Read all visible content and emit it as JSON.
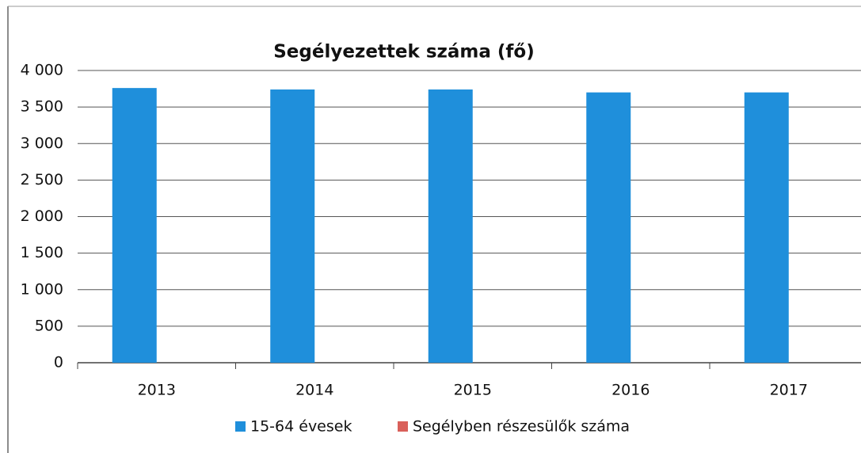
{
  "chart_data": {
    "type": "bar",
    "title": "Segélyezettek száma (fő)",
    "categories": [
      "2013",
      "2014",
      "2015",
      "2016",
      "2017"
    ],
    "series": [
      {
        "name": "15-64 évesek",
        "color": "#1f8fdb",
        "values": [
          3760,
          3740,
          3740,
          3700,
          3700
        ]
      },
      {
        "name": "Segélyben részesülők száma",
        "color": "#d9605a",
        "values": [
          0,
          0,
          0,
          0,
          0
        ]
      }
    ],
    "ylim": [
      0,
      4000
    ],
    "yticks": [
      0,
      500,
      {
        "value": 1000,
        "label": "1 000"
      },
      {
        "value": 1500,
        "label": "1 500"
      },
      {
        "value": 2000,
        "label": "2 000"
      },
      {
        "value": 2500,
        "label": "2 500"
      },
      {
        "value": 3000,
        "label": "3 000"
      },
      {
        "value": 3500,
        "label": "3 500"
      },
      {
        "value": 4000,
        "label": "4 000"
      }
    ],
    "grid": true,
    "legend": "bottom"
  }
}
